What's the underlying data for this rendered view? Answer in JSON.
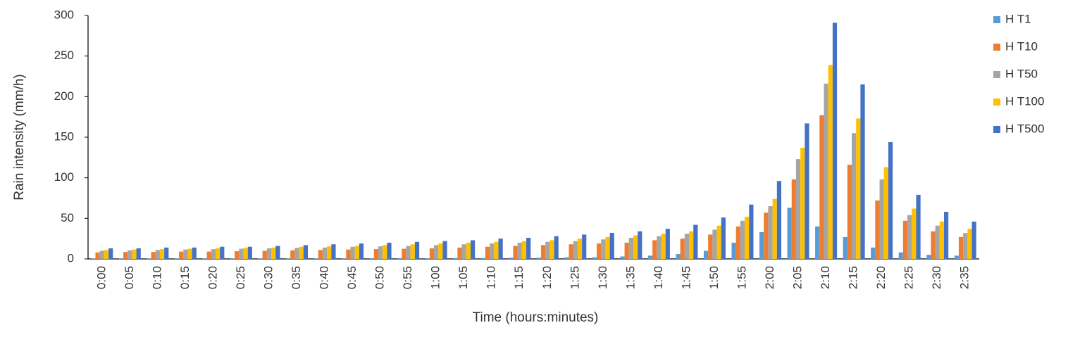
{
  "chart_data": {
    "type": "bar",
    "x_label": "Time (hours:minutes)",
    "y_label": "Rain intensity (mm/h)",
    "categories": [
      "0:00",
      "0:05",
      "0:10",
      "0:15",
      "0:20",
      "0:25",
      "0:30",
      "0:35",
      "0:40",
      "0:45",
      "0:50",
      "0:55",
      "1:00",
      "1:05",
      "1:10",
      "1:15",
      "1:20",
      "1:25",
      "1:30",
      "1:35",
      "1:40",
      "1:45",
      "1:50",
      "1:55",
      "2:00",
      "2:05",
      "2:10",
      "2:15",
      "2:20",
      "2:25",
      "2:30",
      "2:35"
    ],
    "series": [
      {
        "name": "H T1",
        "color": "#5b9bd5",
        "values": [
          0.4,
          0.4,
          0.4,
          0.5,
          0.5,
          0.5,
          0.5,
          0.6,
          0.6,
          0.7,
          0.7,
          0.8,
          0.8,
          1,
          1,
          1.5,
          1.5,
          2,
          2,
          3,
          4,
          6,
          10,
          20,
          33,
          63,
          40,
          27,
          14,
          8,
          5,
          4
        ]
      },
      {
        "name": "H T10",
        "color": "#ed7d31",
        "values": [
          8,
          8.5,
          8.5,
          9,
          9,
          9.5,
          10,
          10.5,
          11,
          11.5,
          12,
          12.5,
          13,
          14,
          15,
          16,
          17,
          18,
          19,
          20,
          23,
          25,
          30,
          40,
          57,
          98,
          177,
          116,
          72,
          47,
          34,
          27
        ]
      },
      {
        "name": "H T50",
        "color": "#a5a5a5",
        "values": [
          10,
          10.5,
          11,
          11.5,
          12,
          12.5,
          13,
          13.5,
          14,
          15,
          15.5,
          16,
          17,
          18,
          19,
          20,
          21,
          22,
          24,
          26,
          28,
          31,
          36,
          47,
          65,
          123,
          216,
          155,
          98,
          54,
          41,
          32
        ]
      },
      {
        "name": "H T100",
        "color": "#ffc000",
        "values": [
          11,
          11.5,
          12,
          12.5,
          13,
          13.5,
          14,
          15,
          15.5,
          16,
          17,
          18,
          19,
          20,
          21,
          22,
          23,
          25,
          27,
          29,
          31,
          34,
          41,
          52,
          74,
          137,
          239,
          173,
          113,
          62,
          46,
          37
        ]
      },
      {
        "name": "H T500",
        "color": "#4472c4",
        "values": [
          13,
          13,
          14,
          14,
          15,
          15,
          16,
          17,
          18,
          19,
          20,
          21,
          22,
          23,
          25,
          26,
          28,
          30,
          32,
          34,
          37,
          42,
          51,
          67,
          96,
          167,
          291,
          215,
          144,
          79,
          58,
          46
        ]
      }
    ],
    "ylim": [
      0,
      300
    ],
    "yticks": [
      0,
      50,
      100,
      150,
      200,
      250,
      300
    ],
    "grid": false,
    "legend": "right"
  }
}
